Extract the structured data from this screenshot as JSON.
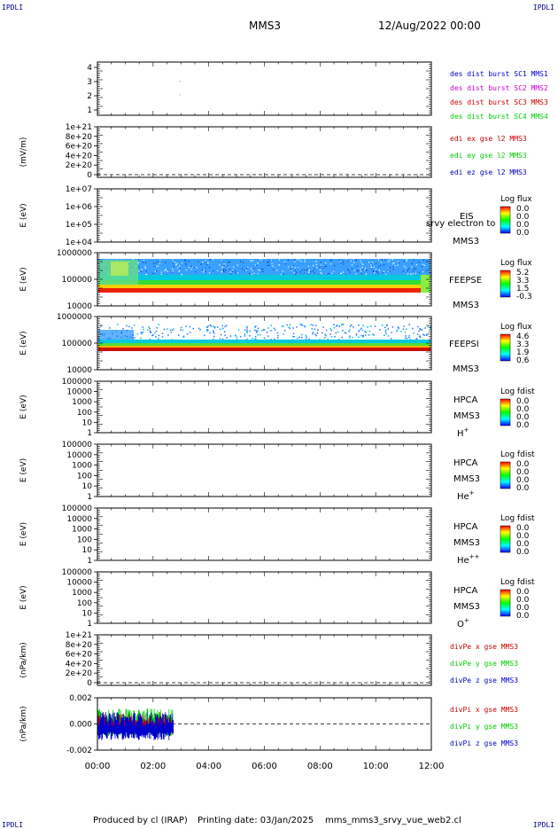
{
  "header": {
    "corner_left": "IPDLI",
    "corner_right": "IPDLI",
    "spacecraft": "MMS3",
    "datetime": "12/Aug/2022 00:00"
  },
  "footer": {
    "produced": "Produced by cl (IRAP)",
    "printing": "Printing date: 03/Jan/2025",
    "file": "mms_mms3_srvy_vue_web2.cl",
    "corner_left": "IPDLI",
    "corner_right": "IPDLI"
  },
  "colors": {
    "mms1": "#0000cc",
    "mms2": "#cc00cc",
    "mms3": "#cc0000",
    "mms4": "#00cc00",
    "x": "#cc0000",
    "y": "#00cc00",
    "z": "#0000cc"
  },
  "chart_data": [
    {
      "type": "line",
      "panel": "burst",
      "ylabel": "",
      "ylim": [
        0.5,
        4.5
      ],
      "yticks": [
        "1",
        "2",
        "3",
        "4"
      ],
      "legend": [
        {
          "name": "des dist burst SC1 MMS1",
          "color": "#0000cc"
        },
        {
          "name": "des dist burst SC2 MMS2",
          "color": "#cc00cc"
        },
        {
          "name": "des dist burst SC3 MMS3",
          "color": "#cc0000"
        },
        {
          "name": "des dist burst SC4 MMS4",
          "color": "#00cc00"
        }
      ]
    },
    {
      "type": "line",
      "panel": "edi",
      "ylabel": "(mV/m)",
      "yticks": [
        "1e+21",
        "8e+20",
        "6e+20",
        "4e+20",
        "2e+20",
        "0"
      ],
      "legend": [
        {
          "name": "edi ex gse l2 MMS3",
          "color": "#cc0000"
        },
        {
          "name": "edi ey gse l2 MMS3",
          "color": "#00cc00"
        },
        {
          "name": "edi ez gse l2 MMS3",
          "color": "#0000cc"
        }
      ]
    },
    {
      "type": "heatmap",
      "panel": "eis",
      "ylabel": "E (eV)",
      "yticks": [
        "1e+07",
        "1e+06",
        "1e+05",
        "1e+04"
      ],
      "labels": [
        "EIS",
        "MMS3"
      ],
      "overlay_text": "srvy electron to",
      "colorbar_title": "Log flux",
      "colorbar_values": [
        "0.0",
        "0.0",
        "0.0",
        "0.0"
      ]
    },
    {
      "type": "heatmap",
      "panel": "feepse",
      "ylabel": "E (eV)",
      "yticks": [
        "1000000",
        "100000",
        "10000"
      ],
      "labels": [
        "FEEPSE",
        "MMS3"
      ],
      "colorbar_title": "Log flux",
      "colorbar_values": [
        "5.2",
        "3.3",
        "1.5",
        "-0.3"
      ]
    },
    {
      "type": "heatmap",
      "panel": "feepsi",
      "ylabel": "E (eV)",
      "yticks": [
        "1000000",
        "100000",
        "10000"
      ],
      "labels": [
        "FEEPSI",
        "MMS3"
      ],
      "colorbar_title": "Log flux",
      "colorbar_values": [
        "4.6",
        "3.3",
        "1.9",
        "0.6"
      ]
    },
    {
      "type": "heatmap",
      "panel": "hpca_h",
      "ylabel": "E (eV)",
      "yticks": [
        "100000",
        "10000",
        "1000",
        "100",
        "10",
        "1"
      ],
      "labels": [
        "HPCA",
        "MMS3"
      ],
      "species": "H",
      "species_sup": "+",
      "colorbar_title": "Log fdist",
      "colorbar_values": [
        "0.0",
        "0.0",
        "0.0",
        "0.0"
      ]
    },
    {
      "type": "heatmap",
      "panel": "hpca_he",
      "ylabel": "E (eV)",
      "yticks": [
        "100000",
        "10000",
        "1000",
        "100",
        "10",
        "1"
      ],
      "labels": [
        "HPCA",
        "MMS3"
      ],
      "species": "He",
      "species_sup": "+",
      "colorbar_title": "Log fdist",
      "colorbar_values": [
        "0.0",
        "0.0",
        "0.0",
        "0.0"
      ]
    },
    {
      "type": "heatmap",
      "panel": "hpca_hepp",
      "ylabel": "E (eV)",
      "yticks": [
        "100000",
        "10000",
        "1000",
        "100",
        "10",
        "1"
      ],
      "labels": [
        "HPCA",
        "MMS3"
      ],
      "species": "He",
      "species_sup": "++",
      "colorbar_title": "Log fdist",
      "colorbar_values": [
        "0.0",
        "0.0",
        "0.0",
        "0.0"
      ]
    },
    {
      "type": "heatmap",
      "panel": "hpca_o",
      "ylabel": "E (eV)",
      "yticks": [
        "100000",
        "10000",
        "1000",
        "100",
        "10",
        "1"
      ],
      "labels": [
        "HPCA",
        "MMS3"
      ],
      "species": "O",
      "species_sup": "+",
      "colorbar_title": "Log fdist",
      "colorbar_values": [
        "0.0",
        "0.0",
        "0.0",
        "0.0"
      ]
    },
    {
      "type": "line",
      "panel": "divpe",
      "ylabel": "(nPa/km)",
      "yticks": [
        "1e+21",
        "8e+20",
        "6e+20",
        "4e+20",
        "2e+20",
        "0"
      ],
      "legend": [
        {
          "name": "divPe x gse MMS3",
          "color": "#cc0000"
        },
        {
          "name": "divPe y gse MMS3",
          "color": "#00cc00"
        },
        {
          "name": "divPe z gse MMS3",
          "color": "#0000cc"
        }
      ]
    },
    {
      "type": "line",
      "panel": "divpi",
      "ylabel": "(nPa/km)",
      "ylim": [
        -0.0035,
        0.0035
      ],
      "yticks": [
        "0.002",
        "0.000",
        "-0.002"
      ],
      "legend": [
        {
          "name": "divPi x gse MMS3",
          "color": "#cc0000"
        },
        {
          "name": "divPi y gse MMS3",
          "color": "#00cc00"
        },
        {
          "name": "divPi z gse MMS3",
          "color": "#0000cc"
        }
      ],
      "data_extent_hours": [
        0,
        2.75
      ]
    }
  ],
  "xaxis": {
    "ticks": [
      "00:00",
      "02:00",
      "04:00",
      "06:00",
      "08:00",
      "10:00",
      "12:00"
    ],
    "xlim_hours": [
      0,
      12
    ]
  }
}
